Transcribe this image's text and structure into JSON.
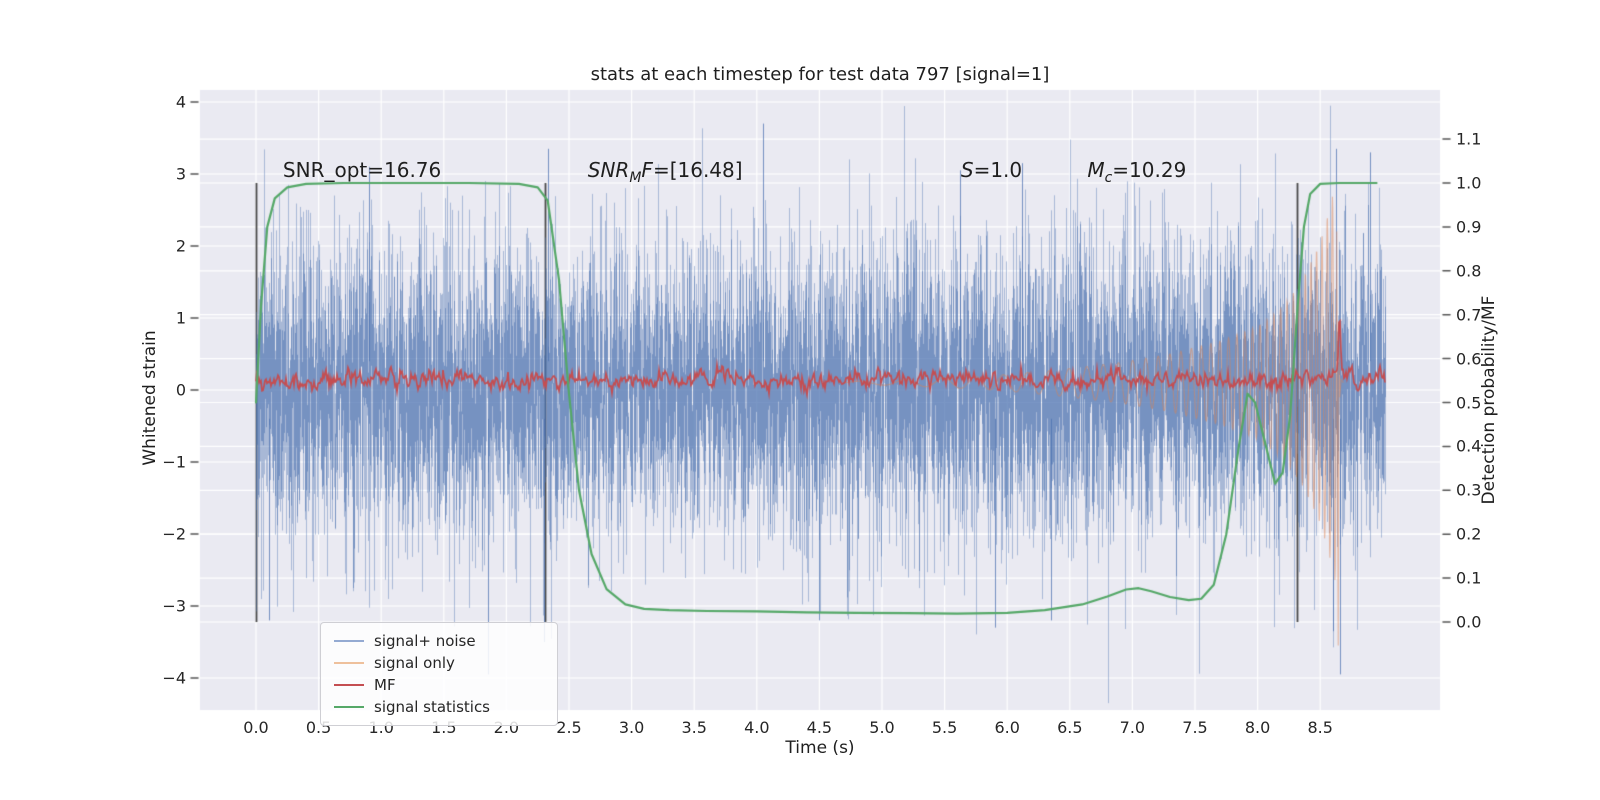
{
  "figure": {
    "title": "stats at each timestep for test data 797 [signal=1]",
    "background": "#ffffff",
    "axes_background": "#eaeaf2",
    "grid_color": "#ffffff"
  },
  "axes": {
    "x": {
      "label": "Time (s)",
      "tick_labels": [
        "0.0",
        "0.5",
        "1.0",
        "1.5",
        "2.0",
        "2.5",
        "3.0",
        "3.5",
        "4.0",
        "4.5",
        "5.0",
        "5.5",
        "6.0",
        "6.5",
        "7.0",
        "7.5",
        "8.0",
        "8.5"
      ],
      "tick_values": [
        0,
        0.5,
        1,
        1.5,
        2,
        2.5,
        3,
        3.5,
        4,
        4.5,
        5,
        5.5,
        6,
        6.5,
        7,
        7.5,
        8,
        8.5
      ]
    },
    "y_left": {
      "label": "Whitened strain",
      "tick_labels": [
        "4",
        "3",
        "2",
        "1",
        "0",
        "−1",
        "−2",
        "−3",
        "−4"
      ],
      "tick_values": [
        4,
        3,
        2,
        1,
        0,
        -1,
        -2,
        -3,
        -4
      ]
    },
    "y_right": {
      "label": "Detection probability/MF",
      "tick_labels": [
        "1.1",
        "1.0",
        "0.9",
        "0.8",
        "0.7",
        "0.6",
        "0.5",
        "0.4",
        "0.3",
        "0.2",
        "0.1",
        "0.0"
      ],
      "tick_values": [
        1.1,
        1.0,
        0.9,
        0.8,
        0.7,
        0.6,
        0.5,
        0.4,
        0.3,
        0.2,
        0.1,
        0.0
      ]
    }
  },
  "annotations": [
    {
      "id": "snr-opt",
      "text": "SNR_opt=16.76",
      "t": 0.215
    },
    {
      "id": "snr-mf",
      "pre": "SNR",
      "sub": "M",
      "mid": "F",
      "val": "=[16.48]",
      "t": 2.65
    },
    {
      "id": "s-val",
      "pre": "S",
      "val": "=1.0",
      "t": 5.63
    },
    {
      "id": "m-chirp",
      "pre": "M",
      "sub": "c",
      "val": "=10.29",
      "t": 6.64
    }
  ],
  "legend": {
    "items": [
      {
        "label": "signal+ noise",
        "color": "#94aad2"
      },
      {
        "label": "signal only",
        "color": "#eec09c"
      },
      {
        "label": "MF",
        "color": "#c44e52"
      },
      {
        "label": "signal statistics",
        "color": "#55a868"
      }
    ]
  },
  "chart_data": {
    "type": "line",
    "title": "stats at each timestep for test data 797 [signal=1]",
    "xlabel": "Time (s)",
    "ylabel_left": "Whitened strain",
    "ylabel_right": "Detection probability/MF",
    "xlim": [
      -0.45,
      9.46
    ],
    "ylim_left": [
      -4.44,
      4.17
    ],
    "ylim_right": [
      -0.2,
      1.21
    ],
    "grid": true,
    "legend_position": "lower left",
    "t_start": 0.0,
    "t_end": 9.02,
    "vlines": {
      "times": [
        0.0,
        2.31,
        8.315
      ],
      "span_right_axis": [
        0.0,
        1.0
      ],
      "color": "#4a4a4a"
    },
    "series": [
      {
        "name": "signal+ noise",
        "type": "noise",
        "axis": "left",
        "color": "#4c72b0",
        "alpha": 0.5,
        "mean": 0.0,
        "std": 1.05,
        "extreme_spikes_up": [
          [
            0.9,
            3.1
          ],
          [
            2.33,
            3.35
          ],
          [
            4.05,
            3.7
          ],
          [
            5.62,
            3.05
          ],
          [
            6.12,
            3.15
          ],
          [
            8.63,
            3.35
          ],
          [
            8.9,
            3.3
          ]
        ],
        "extreme_spikes_down": [
          [
            0.1,
            -3.2
          ],
          [
            1.85,
            -3.95
          ],
          [
            2.3,
            -3.5
          ],
          [
            4.5,
            -3.2
          ],
          [
            5.9,
            -3.3
          ],
          [
            6.35,
            -3.2
          ],
          [
            8.6,
            -3.35
          ],
          [
            8.655,
            -3.95
          ]
        ]
      },
      {
        "name": "signal only",
        "type": "chirp",
        "axis": "left",
        "color": "#dd8452",
        "alpha": 0.5,
        "center": 0.1,
        "envelope": [
          [
            4.7,
            0.015
          ],
          [
            5.3,
            0.05
          ],
          [
            5.9,
            0.1
          ],
          [
            6.4,
            0.18
          ],
          [
            6.9,
            0.28
          ],
          [
            7.3,
            0.4
          ],
          [
            7.7,
            0.58
          ],
          [
            8.0,
            0.78
          ],
          [
            8.2,
            1.05
          ],
          [
            8.35,
            1.4
          ],
          [
            8.5,
            1.95
          ],
          [
            8.58,
            2.45
          ],
          [
            8.632,
            2.85
          ]
        ],
        "freq_base_hz": 2.2,
        "freq_growth": 0.62,
        "merger_tail": [
          [
            8.632,
            2.2
          ],
          [
            8.639,
            -1.1
          ],
          [
            8.644,
            -3.55
          ],
          [
            8.65,
            0.6
          ],
          [
            8.656,
            -0.1
          ],
          [
            8.668,
            0.15
          ],
          [
            8.685,
            0.1
          ]
        ]
      },
      {
        "name": "MF",
        "type": "line",
        "axis": "right",
        "color": "#c44e52",
        "linewidth": 1.7,
        "baseline": 0.552,
        "noise_std": 0.0085,
        "peak": {
          "t": 8.655,
          "value": 0.69
        },
        "minor_bumps": [
          [
            8.52,
            0.012
          ],
          [
            8.74,
            0.018
          ],
          [
            8.97,
            0.02
          ]
        ]
      },
      {
        "name": "signal statistics",
        "type": "line",
        "axis": "right",
        "color": "#55a868",
        "linewidth": 2.2,
        "points": [
          [
            0,
            0.5
          ],
          [
            0.04,
            0.72
          ],
          [
            0.09,
            0.9
          ],
          [
            0.15,
            0.965
          ],
          [
            0.25,
            0.99
          ],
          [
            0.4,
            0.998
          ],
          [
            0.7,
            1.0
          ],
          [
            1.2,
            1.0
          ],
          [
            1.7,
            1.0
          ],
          [
            2.1,
            0.998
          ],
          [
            2.25,
            0.99
          ],
          [
            2.33,
            0.96
          ],
          [
            2.42,
            0.78
          ],
          [
            2.5,
            0.52
          ],
          [
            2.58,
            0.3
          ],
          [
            2.68,
            0.155
          ],
          [
            2.8,
            0.075
          ],
          [
            2.95,
            0.04
          ],
          [
            3.1,
            0.03
          ],
          [
            3.3,
            0.027
          ],
          [
            3.6,
            0.025
          ],
          [
            4.0,
            0.024
          ],
          [
            4.4,
            0.022
          ],
          [
            4.8,
            0.021
          ],
          [
            5.2,
            0.02
          ],
          [
            5.6,
            0.019
          ],
          [
            6.0,
            0.021
          ],
          [
            6.3,
            0.027
          ],
          [
            6.6,
            0.04
          ],
          [
            6.8,
            0.058
          ],
          [
            6.95,
            0.074
          ],
          [
            7.05,
            0.077
          ],
          [
            7.15,
            0.07
          ],
          [
            7.3,
            0.057
          ],
          [
            7.45,
            0.05
          ],
          [
            7.55,
            0.053
          ],
          [
            7.65,
            0.085
          ],
          [
            7.75,
            0.2
          ],
          [
            7.85,
            0.4
          ],
          [
            7.92,
            0.52
          ],
          [
            7.98,
            0.5
          ],
          [
            8.05,
            0.42
          ],
          [
            8.14,
            0.315
          ],
          [
            8.2,
            0.34
          ],
          [
            8.26,
            0.47
          ],
          [
            8.32,
            0.72
          ],
          [
            8.37,
            0.9
          ],
          [
            8.42,
            0.975
          ],
          [
            8.5,
            0.998
          ],
          [
            8.65,
            1.0
          ],
          [
            8.95,
            1.0
          ]
        ]
      }
    ]
  }
}
